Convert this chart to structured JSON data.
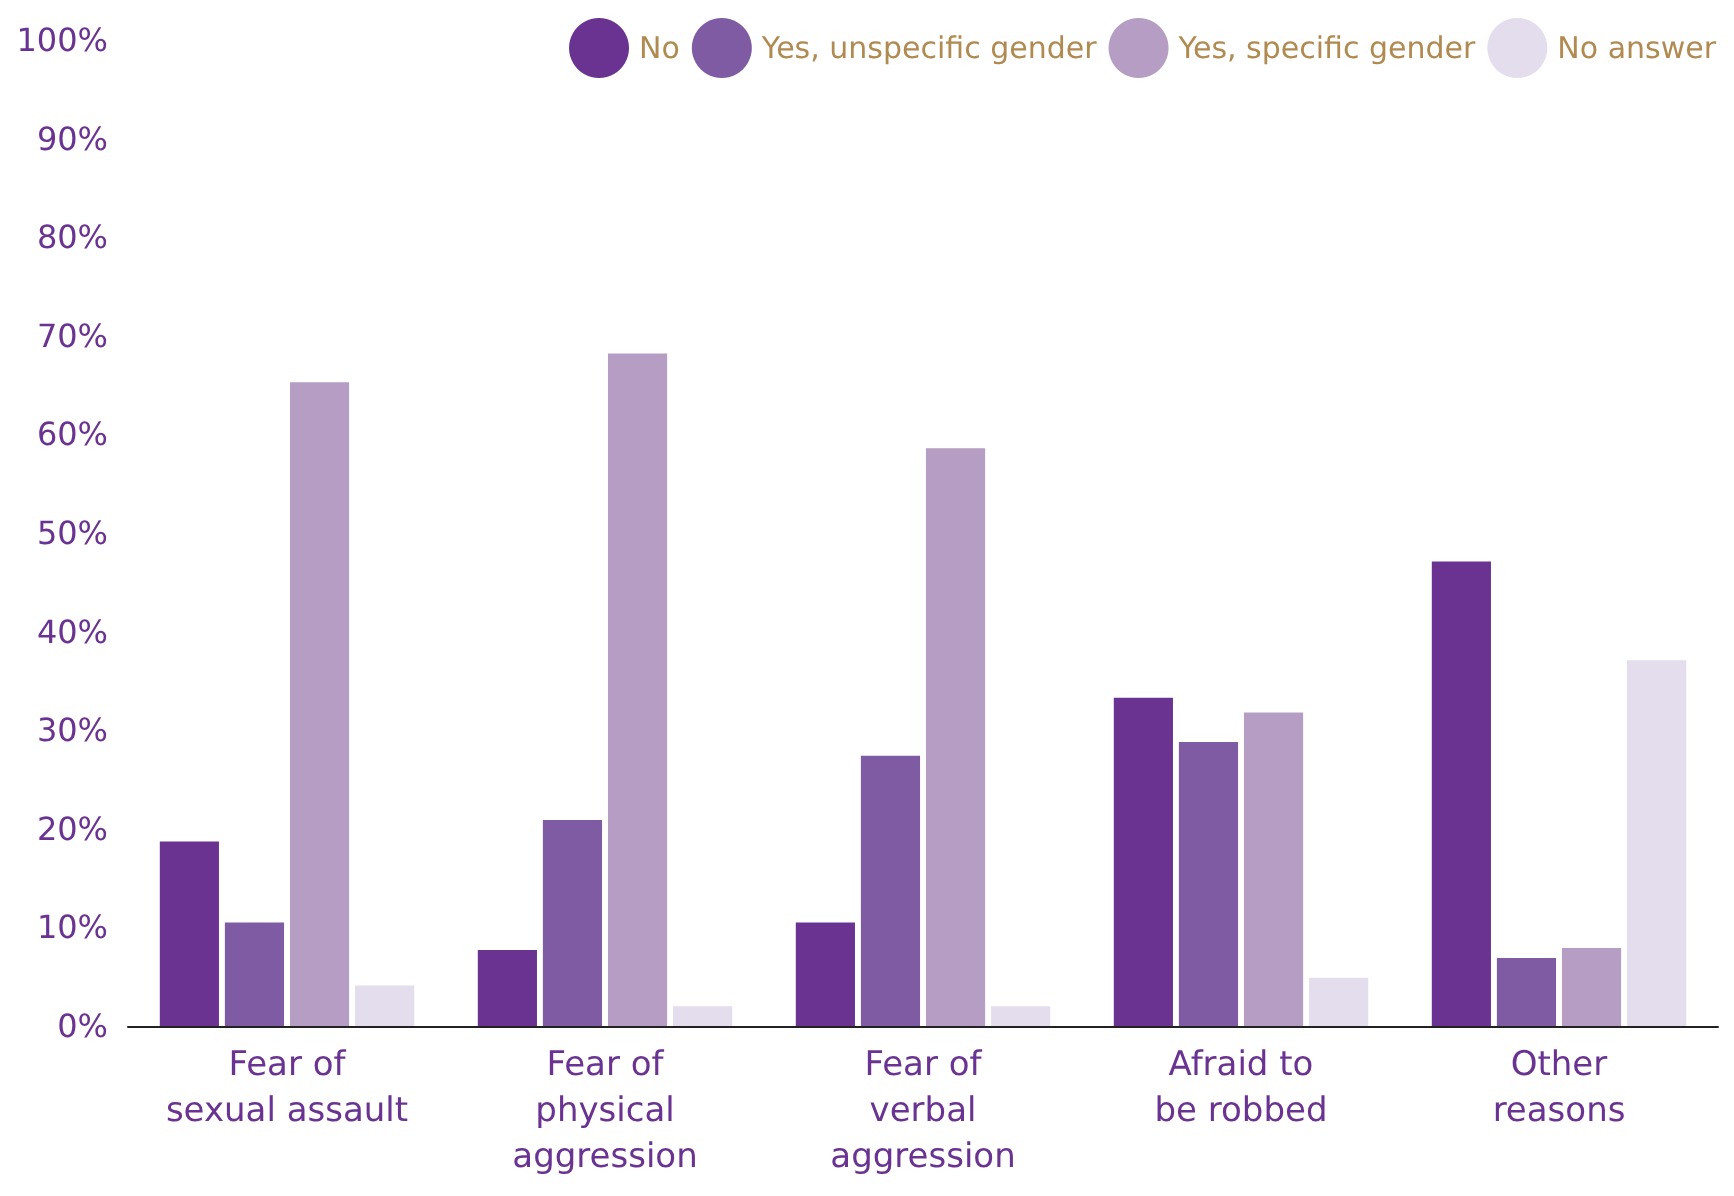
{
  "chart_data": {
    "type": "bar",
    "categories": [
      "Fear of\nsexual assault",
      "Fear of\nphysical\naggression",
      "Fear of\nverbal\naggression",
      "Afraid to\nbe robbed",
      "Other\nreasons"
    ],
    "series": [
      {
        "name": "No",
        "color": "#6a3291",
        "values": [
          18.7,
          7.7,
          10.5,
          33.3,
          47.1
        ]
      },
      {
        "name": "Yes, unspecific gender",
        "color": "#7f5ba3",
        "values": [
          10.5,
          20.9,
          27.4,
          28.8,
          6.9
        ]
      },
      {
        "name": "Yes, specific gender",
        "color": "#b59dc3",
        "values": [
          65.3,
          68.2,
          58.6,
          31.8,
          7.9
        ]
      },
      {
        "name": "No answer",
        "color": "#e3dded",
        "values": [
          4.1,
          2.0,
          2.0,
          4.9,
          37.1
        ]
      }
    ],
    "ylim": [
      0,
      100
    ],
    "yticks": [
      {
        "value": 0,
        "label": "0%"
      },
      {
        "value": 10,
        "label": "10%"
      },
      {
        "value": 20,
        "label": "20%"
      },
      {
        "value": 30,
        "label": "30%"
      },
      {
        "value": 40,
        "label": "40%"
      },
      {
        "value": 50,
        "label": "50%"
      },
      {
        "value": 60,
        "label": "60%"
      },
      {
        "value": 70,
        "label": "70%"
      },
      {
        "value": 80,
        "label": "80%"
      },
      {
        "value": 90,
        "label": "90%"
      },
      {
        "value": 100,
        "label": "100%"
      }
    ],
    "grid": false,
    "legend": "top right"
  }
}
